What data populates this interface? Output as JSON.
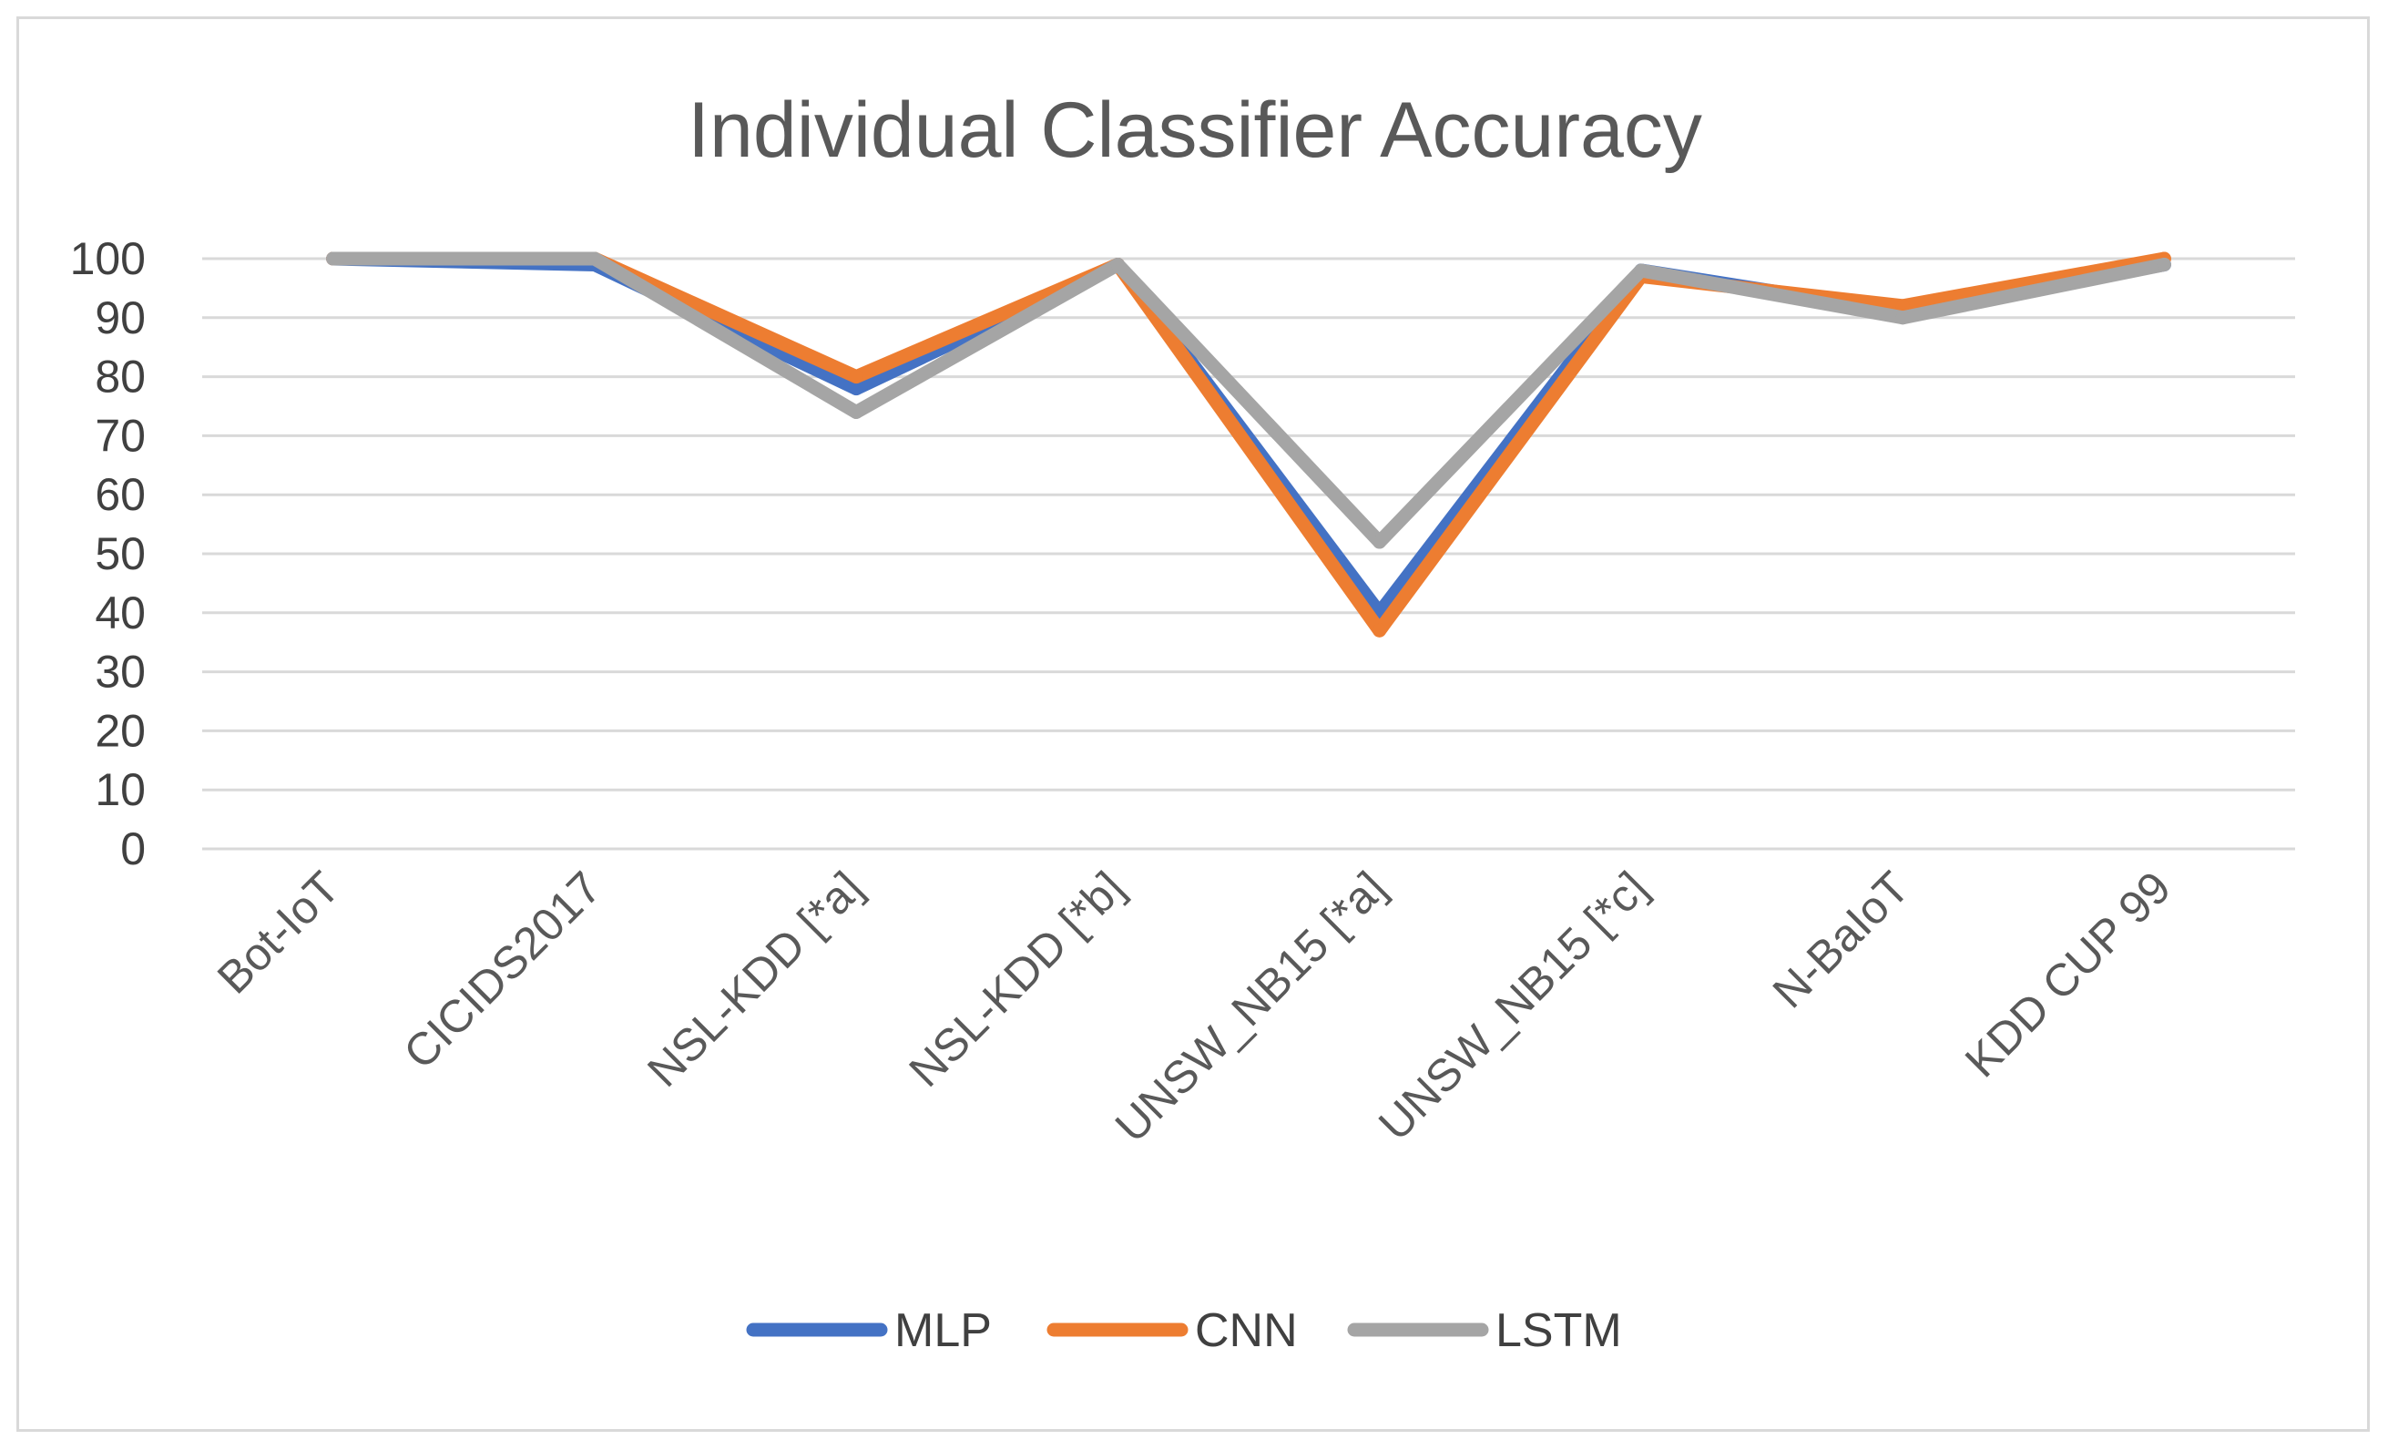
{
  "chart_data": {
    "type": "line",
    "title": "Individual Classifier Accuracy",
    "xlabel": "",
    "ylabel": "",
    "categories": [
      "Bot-IoT",
      "CICIDS2017",
      "NSL-KDD [*a]",
      "NSL-KDD [*b]",
      "UNSW_NB15 [*a]",
      "UNSW_NB15 [*c]",
      "N-BaIoT",
      "KDD CUP 99"
    ],
    "series": [
      {
        "name": "MLP",
        "color": "#4472c4",
        "values": [
          100,
          99,
          78,
          99,
          40,
          98,
          91,
          99
        ]
      },
      {
        "name": "CNN",
        "color": "#ed7d31",
        "values": [
          100,
          100,
          80,
          99,
          37,
          97,
          92,
          100
        ]
      },
      {
        "name": "LSTM",
        "color": "#a5a5a5",
        "values": [
          100,
          100,
          74,
          99,
          52,
          98,
          90,
          99
        ]
      }
    ],
    "ylim": [
      0,
      100
    ],
    "yticks": [
      0,
      10,
      20,
      30,
      40,
      50,
      60,
      70,
      80,
      90,
      100
    ],
    "grid": true,
    "legend": "bottom"
  }
}
